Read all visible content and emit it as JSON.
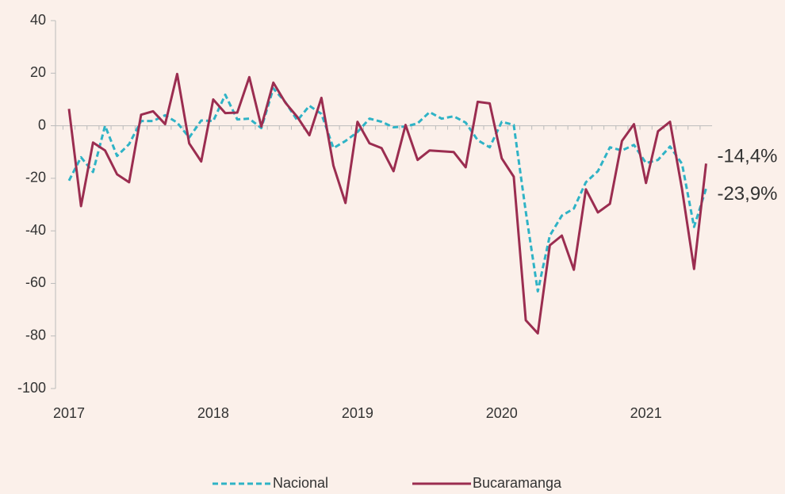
{
  "chart_data": {
    "type": "line",
    "categories": [
      "2017",
      null,
      null,
      null,
      null,
      null,
      null,
      null,
      null,
      null,
      null,
      null,
      "2018",
      null,
      null,
      null,
      null,
      null,
      null,
      null,
      null,
      null,
      null,
      null,
      "2019",
      null,
      null,
      null,
      null,
      null,
      null,
      null,
      null,
      null,
      null,
      null,
      "2020",
      null,
      null,
      null,
      null,
      null,
      null,
      null,
      null,
      null,
      null,
      null,
      "2021",
      null,
      null,
      null,
      null,
      null
    ],
    "ylim": [
      -100,
      40
    ],
    "yticks": [
      -100,
      -80,
      -60,
      -40,
      -20,
      0,
      20,
      40
    ],
    "legend": "bottom",
    "series": [
      {
        "name": "Nacional",
        "color": "#2fb3c6",
        "line_style": "dashed",
        "values": [
          -20.9,
          -12,
          -17.6,
          0,
          -11.5,
          -7,
          1.8,
          1.8,
          4,
          1.2,
          -4.5,
          2,
          1.8,
          11.8,
          2.4,
          2.7,
          -0.9,
          14.2,
          9,
          2,
          7.6,
          4.5,
          -8.5,
          -5.8,
          -2.4,
          2.7,
          1.5,
          -0.6,
          -0.3,
          0.9,
          5.2,
          2.7,
          3.6,
          1.2,
          -5.5,
          -8.2,
          1.5,
          0.3,
          -32.7,
          -63,
          -41.8,
          -34.2,
          -31.5,
          -21.5,
          -17.3,
          -8.2,
          -9.4,
          -7.3,
          -14.2,
          -13,
          -7.9,
          -14.5,
          -38.5,
          -23.9
        ],
        "value_labels": [
          null,
          null,
          null,
          null,
          null,
          null,
          null,
          null,
          null,
          null,
          null,
          null,
          null,
          null,
          null,
          null,
          null,
          null,
          null,
          null,
          null,
          null,
          null,
          null,
          null,
          null,
          null,
          null,
          null,
          null,
          null,
          null,
          null,
          null,
          null,
          null,
          null,
          null,
          null,
          null,
          null,
          null,
          null,
          null,
          null,
          null,
          null,
          null,
          null,
          null,
          null,
          null,
          null,
          "-23,9%"
        ]
      },
      {
        "name": "Bucaramanga",
        "color": "#9b2d50",
        "line_style": "solid",
        "values": [
          6.4,
          -30.6,
          -6.4,
          -9.4,
          -18.5,
          -21.5,
          4.2,
          5.5,
          0.6,
          19.7,
          -6.7,
          -13.6,
          10,
          4.8,
          5,
          18.5,
          -0.3,
          16.4,
          8.8,
          3.3,
          -3.6,
          10.6,
          -15.2,
          -29.4,
          1.5,
          -6.7,
          -8.5,
          -17.3,
          0.3,
          -13,
          -9.4,
          -9.7,
          -10,
          -15.8,
          9.1,
          8.5,
          -12.4,
          -19.4,
          -74,
          -79,
          -45.5,
          -41.8,
          -54.8,
          -24.2,
          -33,
          -29.7,
          -5.8,
          0.6,
          -21.8,
          -2.1,
          1.5,
          -24.2,
          -54.5,
          -14.4
        ],
        "value_labels": [
          null,
          null,
          null,
          null,
          null,
          null,
          null,
          null,
          null,
          null,
          null,
          null,
          null,
          null,
          null,
          null,
          null,
          null,
          null,
          null,
          null,
          null,
          null,
          null,
          null,
          null,
          null,
          null,
          null,
          null,
          null,
          null,
          null,
          null,
          null,
          null,
          null,
          null,
          null,
          null,
          null,
          null,
          null,
          null,
          null,
          null,
          null,
          null,
          null,
          null,
          null,
          null,
          null,
          "-14,4%"
        ]
      }
    ]
  }
}
